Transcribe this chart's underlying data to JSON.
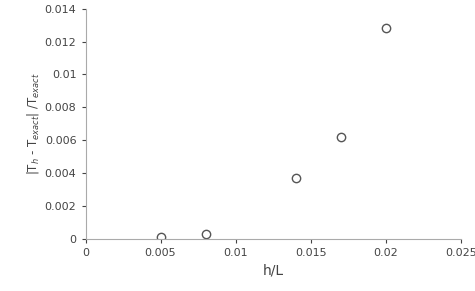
{
  "x": [
    0.005,
    0.008,
    0.014,
    0.017,
    0.02
  ],
  "y": [
    0.0001,
    0.0003,
    0.0037,
    0.0062,
    0.0128
  ],
  "xlabel": "h/L",
  "ylabel": "|T$_h$ - T$_{exact}$| /T$_{exact}$",
  "xlim": [
    0,
    0.025
  ],
  "ylim": [
    0,
    0.014
  ],
  "xticks": [
    0,
    0.005,
    0.01,
    0.015,
    0.02,
    0.025
  ],
  "yticks": [
    0,
    0.002,
    0.004,
    0.006,
    0.008,
    0.01,
    0.012,
    0.014
  ],
  "marker": "o",
  "marker_facecolor": "none",
  "marker_edgecolor": "#555555",
  "marker_size": 6,
  "marker_linewidth": 1.0,
  "background_color": "#ffffff",
  "xlabel_fontsize": 10,
  "ylabel_fontsize": 8.5,
  "tick_fontsize": 8,
  "spine_color": "#aaaaaa",
  "text_color": "#444444"
}
